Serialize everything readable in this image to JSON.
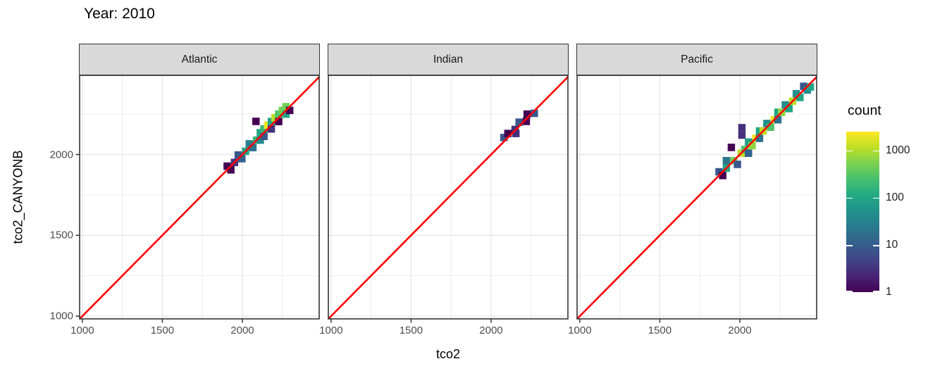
{
  "title": "Year: 2010",
  "axes": {
    "x_title": "tco2",
    "y_title": "tco2_CANYONB",
    "x_tick_labels": [
      "1000",
      "1500",
      "2000"
    ],
    "y_tick_labels": [
      "1000",
      "1500",
      "2000"
    ]
  },
  "facets": [
    {
      "label": "Atlantic"
    },
    {
      "label": "Indian"
    },
    {
      "label": "Pacific"
    }
  ],
  "legend": {
    "title": "count",
    "tick_labels": [
      "1000",
      "100",
      "10",
      "1"
    ],
    "tick_values": [
      1000,
      100,
      10,
      1
    ],
    "scale": "log10",
    "domain": [
      1,
      2500
    ],
    "palette": "viridis"
  },
  "chart_data": {
    "type": "heatmap",
    "subtype": "geom_bin2d_facets",
    "title": "Year: 2010",
    "xlabel": "tco2",
    "ylabel": "tco2_CANYONB",
    "x_range": [
      983,
      2480
    ],
    "y_range": [
      983,
      2490
    ],
    "x_ticks": [
      1000,
      1500,
      2000
    ],
    "y_ticks": [
      1000,
      1500,
      2000
    ],
    "x_minor_ticks": [
      1250,
      1750,
      2250
    ],
    "y_minor_ticks": [
      1250,
      1750,
      2250
    ],
    "grid": true,
    "binwidth": 46,
    "identity_line": {
      "equation": "y = x",
      "color": "#ff0000"
    },
    "fill_scale": {
      "palette": "viridis",
      "transform": "log10",
      "domain": [
        1,
        2500
      ],
      "legend_title": "count"
    },
    "viridis_stops": [
      "#440154",
      "#482475",
      "#414487",
      "#355f8d",
      "#2a788e",
      "#21918c",
      "#22a884",
      "#44bf70",
      "#7ad151",
      "#bddf26",
      "#fde725"
    ],
    "panels": [
      {
        "facet": "Atlantic",
        "tiles": [
          [
            1905,
            1928,
            1
          ],
          [
            1928,
            1905,
            1
          ],
          [
            1951,
            1951,
            3
          ],
          [
            1974,
            1997,
            8
          ],
          [
            1997,
            1974,
            12
          ],
          [
            2020,
            2020,
            100
          ],
          [
            2043,
            2066,
            30
          ],
          [
            2066,
            2043,
            20
          ],
          [
            2089,
            2089,
            180
          ],
          [
            2112,
            2135,
            100
          ],
          [
            2112,
            2089,
            45
          ],
          [
            2085,
            2205,
            1
          ],
          [
            2135,
            2158,
            180
          ],
          [
            2135,
            2112,
            8
          ],
          [
            2158,
            2181,
            2000
          ],
          [
            2181,
            2158,
            3
          ],
          [
            2181,
            2204,
            100
          ],
          [
            2204,
            2227,
            1100
          ],
          [
            2227,
            2204,
            1
          ],
          [
            2227,
            2250,
            280
          ],
          [
            2250,
            2273,
            450
          ],
          [
            2273,
            2250,
            100
          ],
          [
            2273,
            2296,
            450
          ],
          [
            2296,
            2273,
            1
          ]
        ]
      },
      {
        "facet": "Indian",
        "tiles": [
          [
            2080,
            2105,
            8
          ],
          [
            2105,
            2130,
            1
          ],
          [
            2155,
            2130,
            3
          ],
          [
            2150,
            2155,
            3
          ],
          [
            2175,
            2200,
            8
          ],
          [
            2220,
            2205,
            1
          ],
          [
            2225,
            2250,
            1
          ],
          [
            2270,
            2255,
            8
          ]
        ]
      },
      {
        "facet": "Pacific",
        "tiles": [
          [
            1870,
            1893,
            8
          ],
          [
            1893,
            1870,
            1
          ],
          [
            1916,
            1916,
            100
          ],
          [
            1916,
            1962,
            20
          ],
          [
            1947,
            2044,
            1
          ],
          [
            1962,
            1962,
            450
          ],
          [
            1985,
            1939,
            8
          ],
          [
            2008,
            2008,
            1100
          ],
          [
            2013,
            2120,
            3
          ],
          [
            2013,
            2166,
            3
          ],
          [
            2031,
            2031,
            280
          ],
          [
            2054,
            2077,
            100
          ],
          [
            2054,
            2008,
            12
          ],
          [
            2077,
            2054,
            700
          ],
          [
            2100,
            2100,
            2000
          ],
          [
            2123,
            2146,
            100
          ],
          [
            2123,
            2100,
            20
          ],
          [
            2146,
            2146,
            1100
          ],
          [
            2169,
            2192,
            45
          ],
          [
            2192,
            2169,
            280
          ],
          [
            2215,
            2215,
            2000
          ],
          [
            2238,
            2261,
            100
          ],
          [
            2238,
            2215,
            20
          ],
          [
            2261,
            2261,
            700
          ],
          [
            2284,
            2307,
            45
          ],
          [
            2307,
            2284,
            100
          ],
          [
            2330,
            2330,
            1100
          ],
          [
            2353,
            2376,
            45
          ],
          [
            2376,
            2353,
            100
          ],
          [
            2399,
            2422,
            8
          ],
          [
            2422,
            2399,
            45
          ],
          [
            2441,
            2418,
            100
          ]
        ]
      }
    ]
  }
}
